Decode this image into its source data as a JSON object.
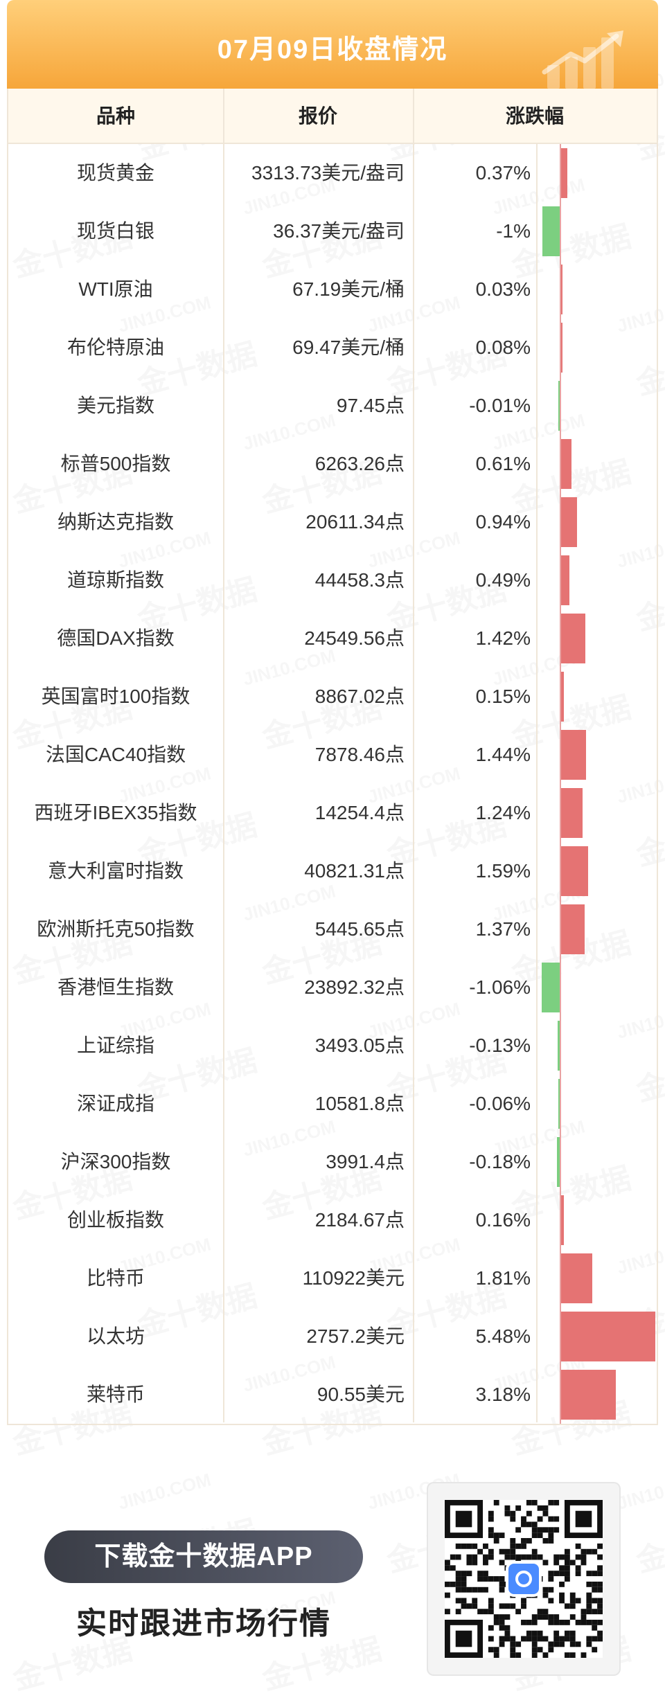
{
  "banner": {
    "title": "07月09日收盘情况"
  },
  "table": {
    "headers": {
      "name": "品种",
      "price": "报价",
      "change": "涨跌幅"
    },
    "rows": [
      {
        "name": "现货黄金",
        "price": "3313.73美元/盎司",
        "change": "0.37%",
        "pct": 0.37
      },
      {
        "name": "现货白银",
        "price": "36.37美元/盎司",
        "change": "-1%",
        "pct": -1.0
      },
      {
        "name": "WTI原油",
        "price": "67.19美元/桶",
        "change": "0.03%",
        "pct": 0.03
      },
      {
        "name": "布伦特原油",
        "price": "69.47美元/桶",
        "change": "0.08%",
        "pct": 0.08
      },
      {
        "name": "美元指数",
        "price": "97.45点",
        "change": "-0.01%",
        "pct": -0.01
      },
      {
        "name": "标普500指数",
        "price": "6263.26点",
        "change": "0.61%",
        "pct": 0.61
      },
      {
        "name": "纳斯达克指数",
        "price": "20611.34点",
        "change": "0.94%",
        "pct": 0.94
      },
      {
        "name": "道琼斯指数",
        "price": "44458.3点",
        "change": "0.49%",
        "pct": 0.49
      },
      {
        "name": "德国DAX指数",
        "price": "24549.56点",
        "change": "1.42%",
        "pct": 1.42
      },
      {
        "name": "英国富时100指数",
        "price": "8867.02点",
        "change": "0.15%",
        "pct": 0.15
      },
      {
        "name": "法国CAC40指数",
        "price": "7878.46点",
        "change": "1.44%",
        "pct": 1.44
      },
      {
        "name": "西班牙IBEX35指数",
        "price": "14254.4点",
        "change": "1.24%",
        "pct": 1.24
      },
      {
        "name": "意大利富时指数",
        "price": "40821.31点",
        "change": "1.59%",
        "pct": 1.59
      },
      {
        "name": "欧洲斯托克50指数",
        "price": "5445.65点",
        "change": "1.37%",
        "pct": 1.37
      },
      {
        "name": "香港恒生指数",
        "price": "23892.32点",
        "change": "-1.06%",
        "pct": -1.06
      },
      {
        "name": "上证综指",
        "price": "3493.05点",
        "change": "-0.13%",
        "pct": -0.13
      },
      {
        "name": "深证成指",
        "price": "10581.8点",
        "change": "-0.06%",
        "pct": -0.06
      },
      {
        "name": "沪深300指数",
        "price": "3991.4点",
        "change": "-0.18%",
        "pct": -0.18
      },
      {
        "name": "创业板指数",
        "price": "2184.67点",
        "change": "0.16%",
        "pct": 0.16
      },
      {
        "name": "比特币",
        "price": "110922美元",
        "change": "1.81%",
        "pct": 1.81
      },
      {
        "name": "以太坊",
        "price": "2757.2美元",
        "change": "5.48%",
        "pct": 5.48
      },
      {
        "name": "莱特币",
        "price": "90.55美元",
        "change": "3.18%",
        "pct": 3.18
      }
    ]
  },
  "colors": {
    "up": "#e57373",
    "down": "#7ccf80",
    "banner": "#f6a63a"
  },
  "footer": {
    "download_label": "下载金十数据APP",
    "tagline": "实时跟进市场行情"
  },
  "watermark": {
    "text_cn": "金十数据",
    "text_en": "JIN10.COM"
  }
}
